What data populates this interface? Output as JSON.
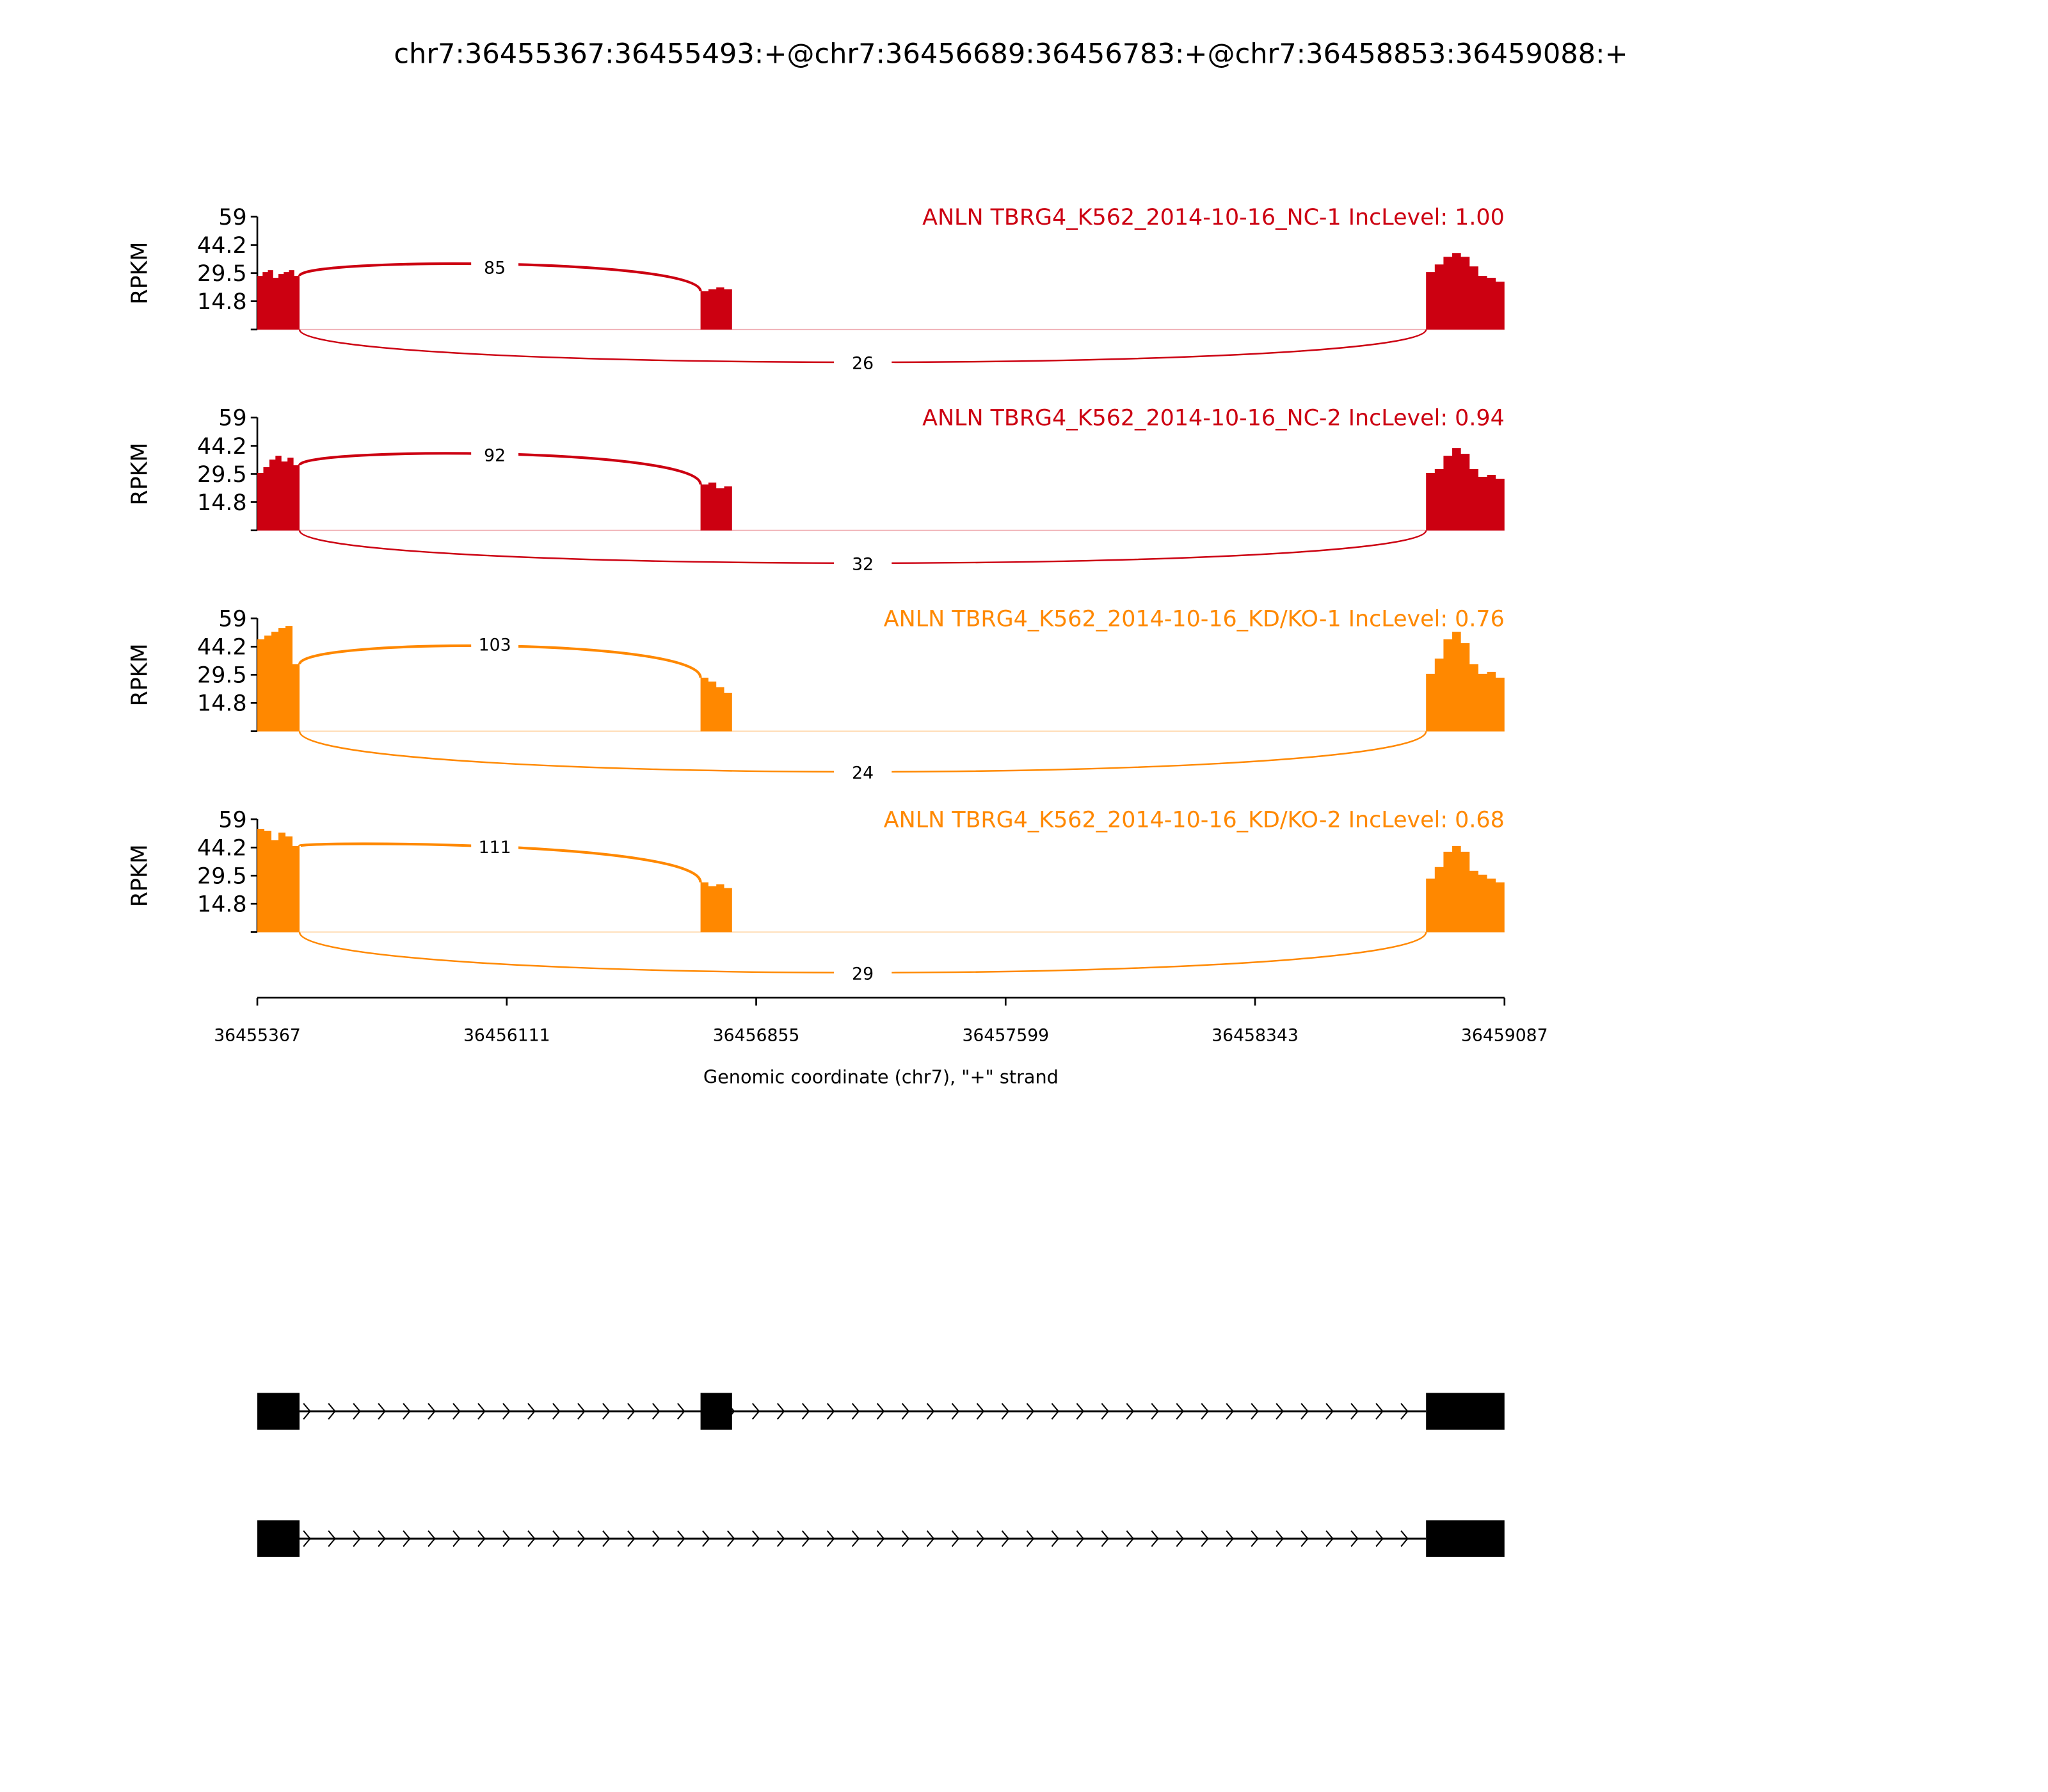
{
  "chart_data": {
    "type": "area",
    "title": "chr7:36455367:36455493:+@chr7:36456689:36456783:+@chr7:36458853:36459088:+",
    "xlabel": "Genomic coordinate (chr7), \"+\" strand",
    "ylabel": "RPKM",
    "xlim": [
      36455367,
      36459087
    ],
    "ylim": [
      0,
      59
    ],
    "x_ticks": [
      "36455367",
      "36456111",
      "36456855",
      "36457599",
      "36458343",
      "36459087"
    ],
    "y_ticks": [
      "59",
      "44.2",
      "29.5",
      "14.8"
    ],
    "exons": [
      [
        36455367,
        36455493
      ],
      [
        36456689,
        36456783
      ],
      [
        36458853,
        36459087
      ]
    ],
    "panels": [
      {
        "label": "ANLN TBRG4_K562_2014-10-16_NC-1 IncLevel: 1.00",
        "color": "#cc0011",
        "inclusion_junction_count": "85",
        "skipping_junction_count": "26",
        "coverage": [
          [
            28,
            30,
            31,
            27,
            29,
            30,
            31,
            28
          ],
          [
            20,
            21,
            22,
            21
          ],
          [
            30,
            34,
            38,
            40,
            38,
            33,
            28,
            27,
            25
          ]
        ]
      },
      {
        "label": "ANLN TBRG4_K562_2014-10-16_NC-2 IncLevel: 0.94",
        "color": "#cc0011",
        "inclusion_junction_count": "92",
        "skipping_junction_count": "32",
        "coverage": [
          [
            30,
            33,
            37,
            39,
            36,
            38,
            34
          ],
          [
            24,
            25,
            22,
            23
          ],
          [
            30,
            32,
            39,
            43,
            40,
            32,
            28,
            29,
            27
          ]
        ]
      },
      {
        "label": "ANLN TBRG4_K562_2014-10-16_KD/KO-1 IncLevel: 0.76",
        "color": "#ff8800",
        "inclusion_junction_count": "103",
        "skipping_junction_count": "24",
        "coverage": [
          [
            48,
            50,
            52,
            54,
            55,
            35
          ],
          [
            28,
            26,
            23,
            20
          ],
          [
            30,
            38,
            48,
            52,
            46,
            35,
            30,
            31,
            28
          ]
        ]
      },
      {
        "label": "ANLN TBRG4_K562_2014-10-16_KD/KO-2 IncLevel: 0.68",
        "color": "#ff8800",
        "inclusion_junction_count": "111",
        "skipping_junction_count": "29",
        "coverage": [
          [
            54,
            53,
            48,
            52,
            50,
            45
          ],
          [
            26,
            24,
            25,
            23
          ],
          [
            28,
            34,
            42,
            45,
            42,
            32,
            30,
            28,
            26
          ]
        ]
      }
    ],
    "isoforms": [
      {
        "exons": [
          [
            36455367,
            36455493
          ],
          [
            36456689,
            36456783
          ],
          [
            36458853,
            36459087
          ]
        ]
      },
      {
        "exons": [
          [
            36455367,
            36455493
          ],
          [
            36458853,
            36459087
          ]
        ]
      }
    ]
  }
}
